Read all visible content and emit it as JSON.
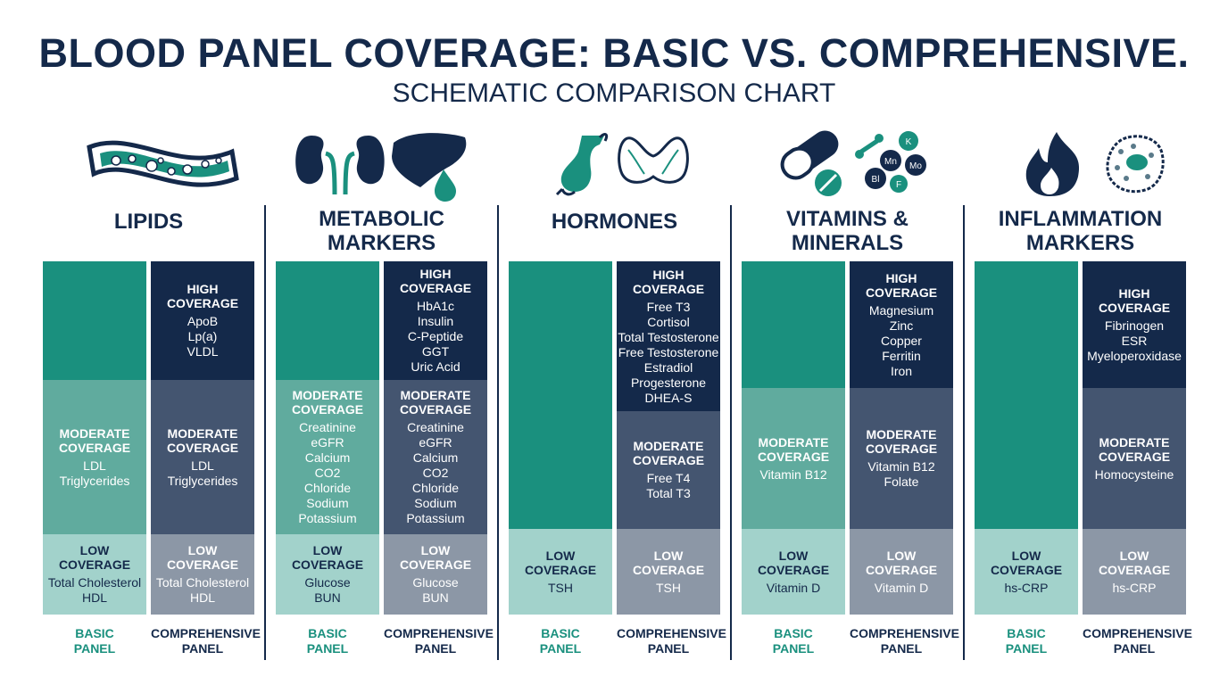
{
  "title": "BLOOD PANEL COVERAGE: BASIC VS. COMPREHENSIVE.",
  "subtitle": "SCHEMATIC COMPARISON CHART",
  "colors": {
    "basic_high": "#1a907e",
    "basic_moderate": "#60ab9e",
    "basic_low": "#a2d2cb",
    "comp_high": "#14294a",
    "comp_moderate": "#445570",
    "comp_low": "#8c97a6",
    "navy": "#14294a",
    "teal": "#1a907e"
  },
  "panel_labels": {
    "basic_1": "BASIC",
    "basic_2": "PANEL",
    "comp_1": "COMPREHENSIVE",
    "comp_2": "PANEL"
  },
  "sections": [
    {
      "name_lines": [
        "LIPIDS"
      ],
      "icons": [
        "artery-icon"
      ],
      "basic": [
        {
          "level": "high",
          "lines": [],
          "items": []
        },
        {
          "level": "moderate",
          "lines": [
            "MODERATE",
            "COVERAGE"
          ],
          "items": [
            "LDL",
            "Triglycerides"
          ]
        },
        {
          "level": "low",
          "lines": [
            "LOW",
            "COVERAGE"
          ],
          "items": [
            "Total Cholesterol",
            "HDL"
          ]
        }
      ],
      "comprehensive": [
        {
          "level": "high",
          "lines": [
            "HIGH",
            "COVERAGE"
          ],
          "items": [
            "ApoB",
            "Lp(a)",
            "VLDL"
          ]
        },
        {
          "level": "moderate",
          "lines": [
            "MODERATE",
            "COVERAGE"
          ],
          "items": [
            "LDL",
            "Triglycerides"
          ]
        },
        {
          "level": "low",
          "lines": [
            "LOW",
            "COVERAGE"
          ],
          "items": [
            "Total Cholesterol",
            "HDL"
          ]
        }
      ]
    },
    {
      "name_lines": [
        "METABOLIC",
        "MARKERS"
      ],
      "icons": [
        "kidneys-icon",
        "liver-icon"
      ],
      "basic": [
        {
          "level": "high",
          "lines": [],
          "items": []
        },
        {
          "level": "moderate",
          "lines": [
            "MODERATE",
            "COVERAGE"
          ],
          "items": [
            "Creatinine",
            "eGFR",
            "Calcium",
            "CO2",
            "Chloride",
            "Sodium",
            "Potassium"
          ]
        },
        {
          "level": "low",
          "lines": [
            "LOW",
            "COVERAGE"
          ],
          "items": [
            "Glucose",
            "BUN"
          ]
        }
      ],
      "comprehensive": [
        {
          "level": "high",
          "lines": [
            "HIGH",
            "COVERAGE"
          ],
          "items": [
            "HbA1c",
            "Insulin",
            "C-Peptide",
            "GGT",
            "Uric Acid"
          ]
        },
        {
          "level": "moderate",
          "lines": [
            "MODERATE",
            "COVERAGE"
          ],
          "items": [
            "Creatinine",
            "eGFR",
            "Calcium",
            "CO2",
            "Chloride",
            "Sodium",
            "Potassium"
          ]
        },
        {
          "level": "low",
          "lines": [
            "LOW",
            "COVERAGE"
          ],
          "items": [
            "Glucose",
            "BUN"
          ]
        }
      ]
    },
    {
      "name_lines": [
        "HORMONES"
      ],
      "icons": [
        "pituitary-icon",
        "thyroid-icon"
      ],
      "basic": [
        {
          "level": "high",
          "lines": [],
          "items": []
        },
        {
          "level": "low",
          "lines": [
            "LOW",
            "COVERAGE"
          ],
          "items": [
            "TSH"
          ]
        }
      ],
      "comprehensive": [
        {
          "level": "high",
          "lines": [
            "HIGH",
            "COVERAGE"
          ],
          "items": [
            "Free T3",
            "Cortisol",
            "Total Testosterone",
            "Free Testosterone",
            "Estradiol",
            "Progesterone",
            "DHEA-S"
          ]
        },
        {
          "level": "moderate",
          "lines": [
            "MODERATE",
            "COVERAGE"
          ],
          "items": [
            "Free T4",
            "Total T3"
          ]
        },
        {
          "level": "low",
          "lines": [
            "LOW",
            "COVERAGE"
          ],
          "items": [
            "TSH"
          ]
        }
      ]
    },
    {
      "name_lines": [
        "VITAMINS &",
        "MINERALS"
      ],
      "icons": [
        "pill-icon",
        "minerals-icon"
      ],
      "mineral_labels": [
        "K",
        "Mn",
        "Mo",
        "Bl",
        "F"
      ],
      "basic": [
        {
          "level": "high",
          "lines": [],
          "items": []
        },
        {
          "level": "moderate",
          "lines": [
            "MODERATE",
            "COVERAGE"
          ],
          "items": [
            "Vitamin B12"
          ]
        },
        {
          "level": "low",
          "lines": [
            "LOW",
            "COVERAGE"
          ],
          "items": [
            "Vitamin D"
          ]
        }
      ],
      "comprehensive": [
        {
          "level": "high",
          "lines": [
            "HIGH",
            "COVERAGE"
          ],
          "items": [
            "Magnesium",
            "Zinc",
            "Copper",
            "Ferritin",
            "Iron"
          ]
        },
        {
          "level": "moderate",
          "lines": [
            "MODERATE",
            "COVERAGE"
          ],
          "items": [
            "Vitamin B12",
            "Folate"
          ]
        },
        {
          "level": "low",
          "lines": [
            "LOW",
            "COVERAGE"
          ],
          "items": [
            "Vitamin D"
          ]
        }
      ]
    },
    {
      "name_lines": [
        "INFLAMMATION",
        "MARKERS"
      ],
      "icons": [
        "flame-icon",
        "cell-icon"
      ],
      "basic": [
        {
          "level": "high",
          "lines": [],
          "items": []
        },
        {
          "level": "low",
          "lines": [
            "LOW",
            "COVERAGE"
          ],
          "items": [
            "hs-CRP"
          ]
        }
      ],
      "comprehensive": [
        {
          "level": "high",
          "lines": [
            "HIGH",
            "COVERAGE"
          ],
          "items": [
            "Fibrinogen",
            "ESR",
            "Myeloperoxidase"
          ]
        },
        {
          "level": "moderate",
          "lines": [
            "MODERATE",
            "COVERAGE"
          ],
          "items": [
            "Homocysteine"
          ]
        },
        {
          "level": "low",
          "lines": [
            "LOW",
            "COVERAGE"
          ],
          "items": [
            "hs-CRP"
          ]
        }
      ]
    }
  ],
  "chart_data": {
    "type": "table",
    "title": "BLOOD PANEL COVERAGE: BASIC VS. COMPREHENSIVE.",
    "subtitle": "SCHEMATIC COMPARISON CHART",
    "categories": [
      "LIPIDS",
      "METABOLIC MARKERS",
      "HORMONES",
      "VITAMINS & MINERALS",
      "INFLAMMATION MARKERS"
    ],
    "panels": [
      "BASIC PANEL",
      "COMPREHENSIVE PANEL"
    ],
    "levels": [
      "HIGH COVERAGE",
      "MODERATE COVERAGE",
      "LOW COVERAGE"
    ]
  }
}
